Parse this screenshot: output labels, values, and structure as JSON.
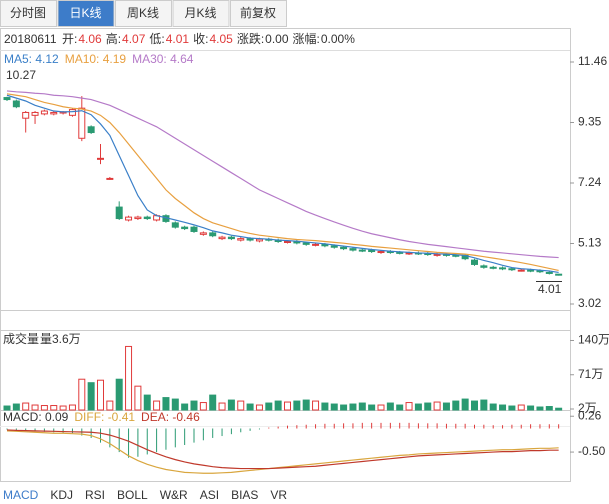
{
  "tabs": [
    "分时图",
    "日K线",
    "周K线",
    "月K线",
    "前复权"
  ],
  "active_tab": 1,
  "info": {
    "date": "20180611",
    "fields": [
      {
        "label": "开:",
        "value": "4.06"
      },
      {
        "label": "高:",
        "value": "4.07"
      },
      {
        "label": "低:",
        "value": "4.01"
      },
      {
        "label": "收:",
        "value": "4.05"
      },
      {
        "label": "涨跌:",
        "value": "0.00"
      },
      {
        "label": "涨幅:",
        "value": "0.00%"
      }
    ]
  },
  "chart_data": [
    {
      "type": "candlestick",
      "ylim": [
        3.02,
        11.46
      ],
      "yticks": [
        11.46,
        9.35,
        7.24,
        5.13,
        3.02
      ],
      "up_color": "#e03a3a",
      "down_color": "#2a9a72",
      "annotations": [
        {
          "text": "10.27"
        },
        {
          "text": "4.01"
        }
      ],
      "open": [
        10.22,
        10.1,
        9.5,
        9.6,
        9.65,
        9.65,
        9.68,
        9.6,
        8.8,
        9.2,
        8.1,
        7.4,
        6.4,
        5.95,
        6.0,
        6.05,
        5.95,
        6.1,
        5.85,
        5.7,
        5.7,
        5.45,
        5.5,
        5.3,
        5.35,
        5.25,
        5.3,
        5.22,
        5.28,
        5.25,
        5.18,
        5.2,
        5.15,
        5.08,
        5.1,
        5.05,
        5.0,
        4.95,
        4.9,
        4.9,
        4.82,
        4.85,
        4.82,
        4.78,
        4.8,
        4.78,
        4.72,
        4.75,
        4.72,
        4.72,
        4.55,
        4.35,
        4.3,
        4.28,
        4.25,
        4.2,
        4.2,
        4.18,
        4.12,
        4.06
      ],
      "high": [
        10.25,
        10.15,
        9.75,
        9.75,
        9.8,
        9.75,
        9.75,
        9.85,
        10.27,
        9.25,
        8.6,
        7.45,
        6.6,
        6.1,
        6.1,
        6.1,
        6.15,
        6.15,
        5.9,
        5.75,
        5.75,
        5.55,
        5.55,
        5.4,
        5.4,
        5.35,
        5.35,
        5.33,
        5.33,
        5.3,
        5.25,
        5.25,
        5.2,
        5.15,
        5.15,
        5.1,
        5.05,
        5.0,
        4.95,
        4.95,
        4.9,
        4.9,
        4.87,
        4.85,
        4.85,
        4.83,
        4.8,
        4.8,
        4.77,
        4.77,
        4.6,
        4.4,
        4.35,
        4.33,
        4.3,
        4.25,
        4.25,
        4.23,
        4.17,
        4.07
      ],
      "low": [
        10.1,
        9.85,
        9.0,
        9.3,
        9.6,
        9.6,
        9.63,
        9.55,
        8.7,
        8.95,
        7.9,
        7.35,
        5.95,
        5.9,
        5.95,
        5.95,
        5.9,
        5.85,
        5.65,
        5.6,
        5.5,
        5.4,
        5.35,
        5.25,
        5.25,
        5.2,
        5.2,
        5.17,
        5.2,
        5.15,
        5.13,
        5.1,
        5.05,
        5.03,
        5.0,
        4.95,
        4.9,
        4.85,
        4.83,
        4.8,
        4.77,
        4.77,
        4.75,
        4.73,
        4.73,
        4.7,
        4.67,
        4.67,
        4.65,
        4.55,
        4.35,
        4.25,
        4.23,
        4.2,
        4.17,
        4.15,
        4.13,
        4.1,
        4.05,
        4.01
      ],
      "close": [
        10.15,
        9.9,
        9.7,
        9.7,
        9.75,
        9.7,
        9.72,
        9.8,
        9.85,
        9.0,
        8.1,
        7.4,
        6.0,
        6.05,
        6.05,
        6.0,
        6.1,
        5.9,
        5.7,
        5.65,
        5.55,
        5.5,
        5.4,
        5.35,
        5.3,
        5.3,
        5.25,
        5.28,
        5.25,
        5.2,
        5.2,
        5.15,
        5.1,
        5.1,
        5.05,
        5.0,
        4.95,
        4.9,
        4.88,
        4.85,
        4.85,
        4.82,
        4.8,
        4.8,
        4.78,
        4.75,
        4.75,
        4.72,
        4.7,
        4.6,
        4.4,
        4.3,
        4.28,
        4.25,
        4.22,
        4.2,
        4.18,
        4.15,
        4.1,
        4.05
      ],
      "series": [
        {
          "name": "MA5: 4.12",
          "color": "#3a7fc8",
          "values": [
            10.3,
            10.2,
            10.1,
            9.95,
            9.85,
            9.75,
            9.72,
            9.73,
            9.76,
            9.62,
            9.3,
            8.9,
            8.2,
            7.5,
            6.8,
            6.3,
            6.1,
            6.03,
            5.95,
            5.87,
            5.78,
            5.68,
            5.57,
            5.5,
            5.42,
            5.37,
            5.32,
            5.3,
            5.28,
            5.25,
            5.23,
            5.21,
            5.18,
            5.15,
            5.12,
            5.08,
            5.04,
            5.0,
            4.96,
            4.92,
            4.89,
            4.86,
            4.84,
            4.82,
            4.8,
            4.79,
            4.77,
            4.76,
            4.74,
            4.71,
            4.63,
            4.54,
            4.46,
            4.37,
            4.29,
            4.25,
            4.23,
            4.2,
            4.17,
            4.12
          ]
        },
        {
          "name": "MA10: 4.19",
          "color": "#e8a040",
          "values": [
            10.35,
            10.3,
            10.25,
            10.15,
            10.05,
            9.98,
            9.9,
            9.85,
            9.82,
            9.75,
            9.6,
            9.35,
            9.0,
            8.6,
            8.2,
            7.8,
            7.4,
            7.0,
            6.7,
            6.45,
            6.2,
            6.0,
            5.85,
            5.75,
            5.65,
            5.55,
            5.48,
            5.42,
            5.38,
            5.34,
            5.3,
            5.27,
            5.25,
            5.23,
            5.2,
            5.17,
            5.14,
            5.1,
            5.07,
            5.03,
            5.0,
            4.97,
            4.94,
            4.91,
            4.88,
            4.85,
            4.82,
            4.8,
            4.78,
            4.76,
            4.72,
            4.67,
            4.62,
            4.57,
            4.52,
            4.46,
            4.4,
            4.33,
            4.26,
            4.19
          ]
        },
        {
          "name": "MA30: 4.64",
          "color": "#b57ac8",
          "values": [
            10.45,
            10.42,
            10.4,
            10.37,
            10.35,
            10.3,
            10.28,
            10.25,
            10.2,
            10.15,
            10.05,
            9.95,
            9.8,
            9.65,
            9.5,
            9.35,
            9.2,
            9.0,
            8.8,
            8.6,
            8.4,
            8.2,
            8.0,
            7.8,
            7.6,
            7.4,
            7.2,
            7.0,
            6.85,
            6.7,
            6.55,
            6.4,
            6.25,
            6.12,
            6.0,
            5.88,
            5.77,
            5.66,
            5.56,
            5.47,
            5.4,
            5.33,
            5.26,
            5.2,
            5.15,
            5.1,
            5.06,
            5.02,
            4.98,
            4.94,
            4.9,
            4.86,
            4.83,
            4.8,
            4.77,
            4.74,
            4.71,
            4.68,
            4.66,
            4.64
          ]
        }
      ]
    },
    {
      "type": "volume",
      "title": "成交量",
      "subtitle": "量3.6万",
      "ylim": [
        0,
        145
      ],
      "yticks": [
        {
          "value": 140,
          "label": "140万"
        },
        {
          "value": 71,
          "label": "71万"
        },
        {
          "value": 2,
          "label": "2万"
        }
      ],
      "values": [
        8,
        12,
        14,
        10,
        9,
        9,
        8,
        10,
        62,
        55,
        60,
        18,
        62,
        128,
        48,
        30,
        18,
        25,
        22,
        12,
        18,
        15,
        30,
        14,
        20,
        18,
        12,
        10,
        14,
        18,
        16,
        18,
        20,
        18,
        14,
        12,
        10,
        12,
        14,
        10,
        10,
        14,
        10,
        15,
        12,
        14,
        16,
        14,
        18,
        22,
        18,
        20,
        12,
        10,
        8,
        10,
        8,
        6,
        7,
        3.6
      ]
    },
    {
      "type": "macd",
      "ylim": [
        -1.05,
        0.35
      ],
      "yticks": [
        0.26,
        {
          "value": -0.5,
          "label": "-0.50"
        }
      ],
      "series": [
        {
          "name": "MACD: 0.09",
          "color": "#333333",
          "values": [
            -0.02,
            -0.03,
            -0.05,
            -0.06,
            -0.07,
            -0.08,
            -0.09,
            -0.1,
            -0.15,
            -0.2,
            -0.3,
            -0.4,
            -0.5,
            -0.62,
            -0.6,
            -0.55,
            -0.5,
            -0.45,
            -0.4,
            -0.35,
            -0.3,
            -0.25,
            -0.2,
            -0.16,
            -0.12,
            -0.08,
            -0.05,
            -0.02,
            0.02,
            0.04,
            0.06,
            0.07,
            0.08,
            0.09,
            0.1,
            0.1,
            0.11,
            0.11,
            0.12,
            0.12,
            0.12,
            0.12,
            0.12,
            0.12,
            0.11,
            0.11,
            0.11,
            0.1,
            0.1,
            0.1,
            0.08,
            0.08,
            0.07,
            0.07,
            0.08,
            0.08,
            0.09,
            0.09,
            0.09,
            0.09
          ]
        },
        {
          "name": "DIFF: -0.41",
          "color": "#d9a63e",
          "values": [
            -0.05,
            -0.06,
            -0.07,
            -0.08,
            -0.09,
            -0.1,
            -0.1,
            -0.11,
            -0.12,
            -0.15,
            -0.22,
            -0.32,
            -0.45,
            -0.58,
            -0.68,
            -0.76,
            -0.82,
            -0.87,
            -0.9,
            -0.93,
            -0.94,
            -0.95,
            -0.95,
            -0.94,
            -0.93,
            -0.91,
            -0.89,
            -0.87,
            -0.85,
            -0.83,
            -0.81,
            -0.79,
            -0.77,
            -0.75,
            -0.73,
            -0.71,
            -0.69,
            -0.67,
            -0.65,
            -0.63,
            -0.61,
            -0.59,
            -0.57,
            -0.56,
            -0.54,
            -0.53,
            -0.52,
            -0.51,
            -0.5,
            -0.49,
            -0.48,
            -0.47,
            -0.46,
            -0.45,
            -0.45,
            -0.44,
            -0.43,
            -0.42,
            -0.42,
            -0.41
          ]
        },
        {
          "name": "DEA: -0.46",
          "color": "#c0392b",
          "values": [
            -0.03,
            -0.04,
            -0.045,
            -0.05,
            -0.055,
            -0.06,
            -0.065,
            -0.07,
            -0.075,
            -0.08,
            -0.1,
            -0.14,
            -0.2,
            -0.27,
            -0.36,
            -0.45,
            -0.53,
            -0.6,
            -0.66,
            -0.71,
            -0.75,
            -0.78,
            -0.81,
            -0.83,
            -0.84,
            -0.85,
            -0.85,
            -0.85,
            -0.85,
            -0.84,
            -0.83,
            -0.82,
            -0.81,
            -0.8,
            -0.78,
            -0.76,
            -0.74,
            -0.72,
            -0.7,
            -0.68,
            -0.66,
            -0.64,
            -0.62,
            -0.6,
            -0.58,
            -0.57,
            -0.56,
            -0.55,
            -0.54,
            -0.53,
            -0.52,
            -0.51,
            -0.5,
            -0.49,
            -0.49,
            -0.48,
            -0.47,
            -0.47,
            -0.46,
            -0.46
          ]
        }
      ]
    }
  ],
  "indicator_tabs": [
    "MACD",
    "KDJ",
    "RSI",
    "BOLL",
    "W&R",
    "ASI",
    "BIAS",
    "VR"
  ],
  "active_indicator": 0
}
